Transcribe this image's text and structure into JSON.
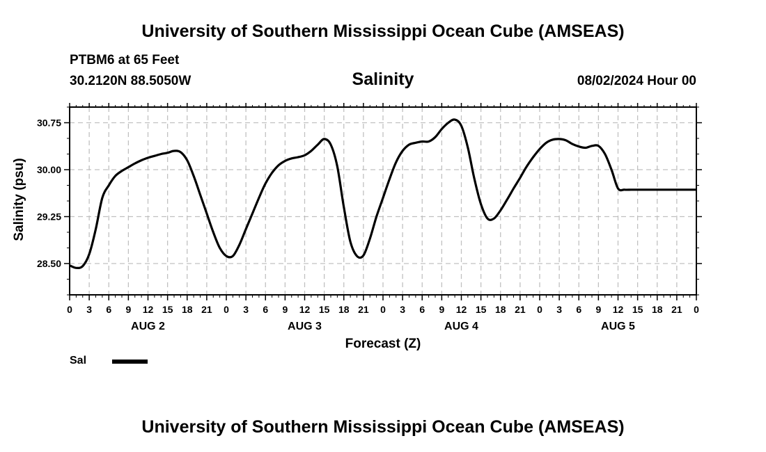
{
  "header": {
    "title": "University of Southern Mississippi Ocean Cube (AMSEAS)",
    "station": "PTBM6 at 65 Feet",
    "coordinates": "30.2120N  88.5050W",
    "variable": "Salinity",
    "datetime": "08/02/2024 Hour 00"
  },
  "footer": {
    "title": "University of Southern Mississippi Ocean Cube (AMSEAS)"
  },
  "legend": {
    "label": "Sal",
    "color": "#000000"
  },
  "chart_data": {
    "type": "line",
    "title": "Salinity",
    "xlabel": "Forecast (Z)",
    "ylabel": "Salinity (psu)",
    "xlim": [
      0,
      96
    ],
    "ylim": [
      28.0,
      31.0
    ],
    "y_ticks": [
      "28.50",
      "29.25",
      "30.00",
      "30.75"
    ],
    "y_tick_values": [
      28.5,
      29.25,
      30.0,
      30.75
    ],
    "x_tick_labels": [
      "0",
      "3",
      "6",
      "9",
      "12",
      "15",
      "18",
      "21",
      "0",
      "3",
      "6",
      "9",
      "12",
      "15",
      "18",
      "21",
      "0",
      "3",
      "6",
      "9",
      "12",
      "15",
      "18",
      "21",
      "0",
      "3",
      "6",
      "9",
      "12",
      "15",
      "18",
      "21",
      "0"
    ],
    "x_tick_hours": [
      0,
      3,
      6,
      9,
      12,
      15,
      18,
      21,
      24,
      27,
      30,
      33,
      36,
      39,
      42,
      45,
      48,
      51,
      54,
      57,
      60,
      63,
      66,
      69,
      72,
      75,
      78,
      81,
      84,
      87,
      90,
      93,
      96
    ],
    "day_labels": [
      "AUG 2",
      "AUG 3",
      "AUG 4",
      "AUG 5"
    ],
    "day_label_hours": [
      12,
      36,
      60,
      84
    ],
    "grid": true,
    "series": [
      {
        "name": "Sal",
        "color": "#000000",
        "x": [
          0,
          1,
          2,
          3,
          4,
          5,
          6,
          7,
          8,
          9,
          10,
          11,
          12,
          13,
          14,
          15,
          16,
          17,
          18,
          19,
          20,
          21,
          22,
          23,
          24,
          25,
          26,
          27,
          28,
          29,
          30,
          31,
          32,
          33,
          34,
          35,
          36,
          37,
          38,
          39,
          40,
          41,
          42,
          43,
          44,
          45,
          46,
          47,
          48,
          49,
          50,
          51,
          52,
          53,
          54,
          55,
          56,
          57,
          58,
          59,
          60,
          61,
          62,
          63,
          64,
          65,
          66,
          67,
          68,
          69,
          70,
          71,
          72,
          73,
          74,
          75,
          76,
          77,
          78,
          79,
          80,
          81,
          82,
          83,
          84,
          85,
          86,
          87,
          88,
          89,
          90,
          91,
          92,
          93,
          94,
          95,
          96
        ],
        "values": [
          28.47,
          28.43,
          28.46,
          28.65,
          29.05,
          29.55,
          29.75,
          29.9,
          29.98,
          30.04,
          30.1,
          30.15,
          30.19,
          30.22,
          30.25,
          30.27,
          30.3,
          30.28,
          30.15,
          29.9,
          29.6,
          29.3,
          29.0,
          28.75,
          28.62,
          28.62,
          28.8,
          29.05,
          29.3,
          29.55,
          29.78,
          29.95,
          30.07,
          30.14,
          30.18,
          30.2,
          30.23,
          30.3,
          30.4,
          30.49,
          30.4,
          30.05,
          29.4,
          28.85,
          28.62,
          28.63,
          28.9,
          29.25,
          29.55,
          29.85,
          30.12,
          30.3,
          30.4,
          30.43,
          30.45,
          30.45,
          30.52,
          30.65,
          30.75,
          30.8,
          30.7,
          30.35,
          29.85,
          29.45,
          29.22,
          29.22,
          29.35,
          29.52,
          29.7,
          29.87,
          30.05,
          30.2,
          30.33,
          30.43,
          30.48,
          30.49,
          30.47,
          30.41,
          30.37,
          30.35,
          30.38,
          30.38,
          30.25,
          30.0,
          29.7,
          29.68,
          29.68,
          29.68,
          29.68,
          29.68,
          29.68,
          29.68,
          29.68,
          29.68,
          29.68,
          29.68,
          29.68
        ]
      }
    ]
  }
}
